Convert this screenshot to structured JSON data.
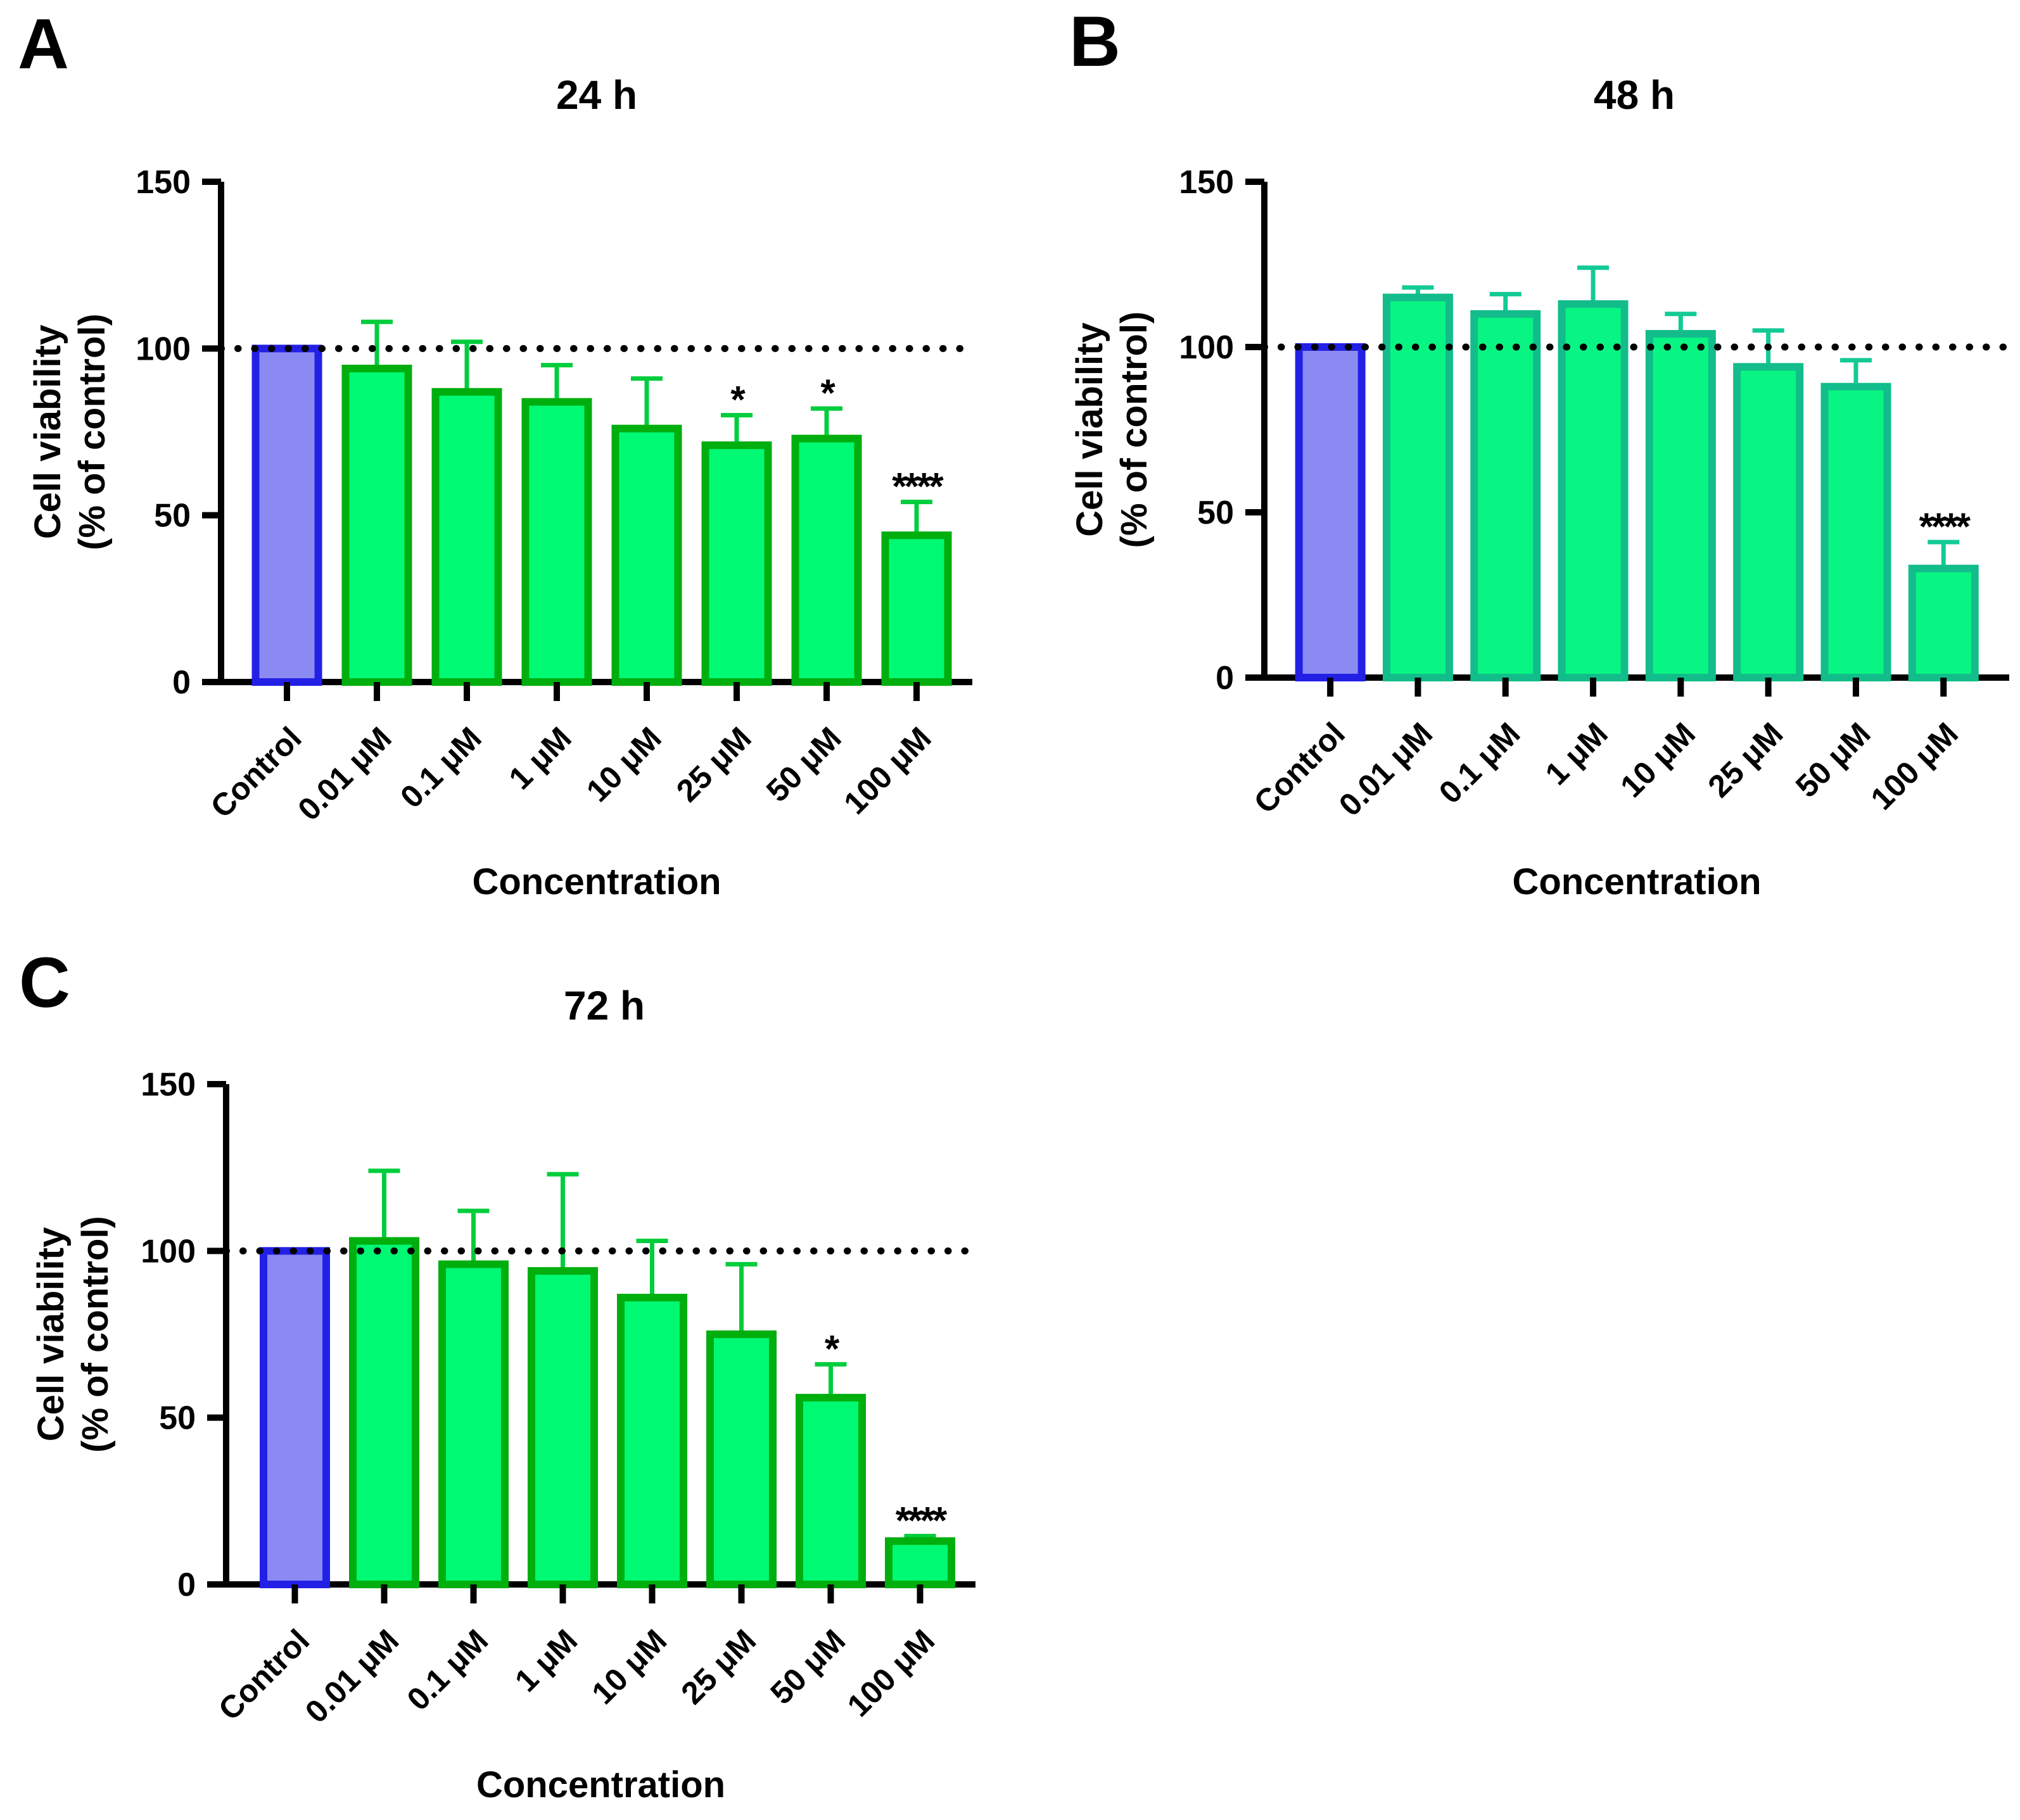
{
  "figure_title": "Cell viability bar charts at three timepoints",
  "colors": {
    "background": "#ffffff",
    "axis": "#000000",
    "text": "#000000",
    "control_fill": "#8A8AF2",
    "control_border": "#2320E6",
    "green_fill": "#00F973",
    "green_border": "#00AE0E",
    "green_error": "#00CD3C",
    "teal_fill": "#09F583",
    "teal_border": "#12BD8B",
    "teal_error": "#13CA95"
  },
  "chart_data": [
    {
      "type": "bar",
      "panel_letter": "A",
      "title": "24 h",
      "xlabel": "Concentration",
      "ylabel_line1": "Cell viability",
      "ylabel_line2": "(% of control)",
      "ylim": [
        0,
        150
      ],
      "y_ticks": [
        0,
        50,
        100,
        150
      ],
      "reference_line_y": 100,
      "grid": false,
      "legend": "none",
      "scheme": "green",
      "control_index": 0,
      "categories": [
        "Control",
        "0.01 μM",
        "0.1 μM",
        "1 μM",
        "10 μM",
        "25 μM",
        "50 μM",
        "100 μM"
      ],
      "values": [
        100,
        94,
        87,
        84,
        76,
        71,
        73,
        44
      ],
      "errors_upper": [
        0,
        14,
        15,
        11,
        15,
        9,
        9,
        10
      ],
      "significance": [
        "",
        "",
        "",
        "",
        "",
        "*",
        "*",
        "****"
      ]
    },
    {
      "type": "bar",
      "panel_letter": "B",
      "title": "48 h",
      "xlabel": "Concentration",
      "ylabel_line1": "Cell viability",
      "ylabel_line2": "(% of control)",
      "ylim": [
        0,
        150
      ],
      "y_ticks": [
        0,
        50,
        100,
        150
      ],
      "reference_line_y": 100,
      "grid": false,
      "legend": "none",
      "scheme": "teal",
      "control_index": 0,
      "categories": [
        "Control",
        "0.01 μM",
        "0.1 μM",
        "1 μM",
        "10 μM",
        "25 μM",
        "50 μM",
        "100 μM"
      ],
      "values": [
        100,
        115,
        110,
        113,
        104,
        94,
        88,
        33
      ],
      "errors_upper": [
        0,
        3,
        6,
        11,
        6,
        11,
        8,
        8
      ],
      "significance": [
        "",
        "",
        "",
        "",
        "",
        "",
        "",
        "****"
      ]
    },
    {
      "type": "bar",
      "panel_letter": "C",
      "title": "72 h",
      "xlabel": "Concentration",
      "ylabel_line1": "Cell viability",
      "ylabel_line2": "(% of control)",
      "ylim": [
        0,
        150
      ],
      "y_ticks": [
        0,
        50,
        100,
        150
      ],
      "reference_line_y": 100,
      "grid": false,
      "legend": "none",
      "scheme": "green",
      "control_index": 0,
      "categories": [
        "Control",
        "0.01 μM",
        "0.1 μM",
        "1 μM",
        "10 μM",
        "25 μM",
        "50 μM",
        "100 μM"
      ],
      "values": [
        100,
        103,
        96,
        94,
        86,
        75,
        56,
        13
      ],
      "errors_upper": [
        0,
        21,
        16,
        29,
        17,
        21,
        10,
        1.5
      ],
      "significance": [
        "",
        "",
        "",
        "",
        "",
        "",
        "*",
        "****"
      ]
    }
  ]
}
